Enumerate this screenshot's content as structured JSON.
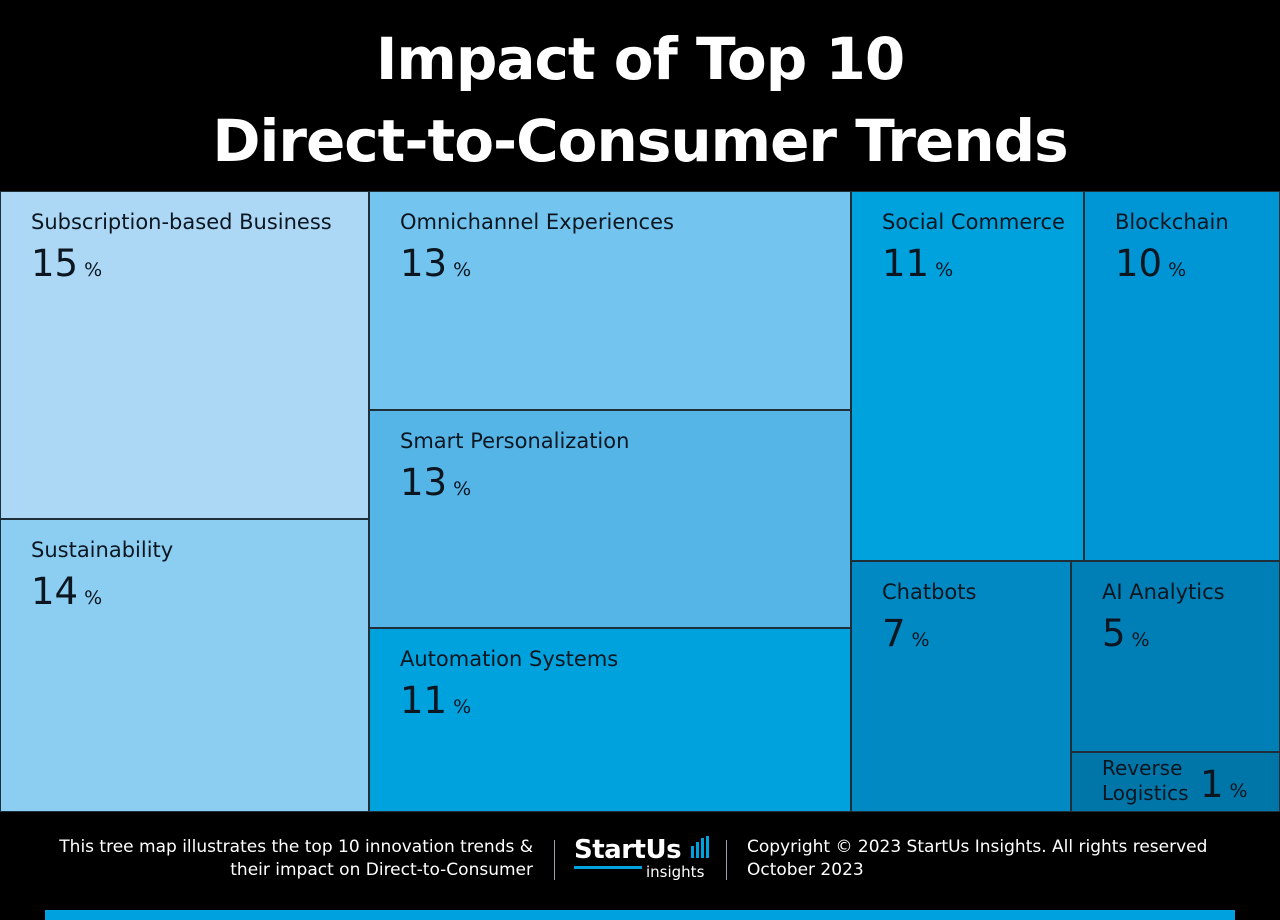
{
  "chart_data": {
    "type": "treemap",
    "title_lines": [
      "Impact of Top 10",
      "Direct-to-Consumer Trends"
    ],
    "unit": "%",
    "items": [
      {
        "label": "Subscription-based Business",
        "value": 15,
        "color": "#acd8f6"
      },
      {
        "label": "Sustainability",
        "value": 14,
        "color": "#8ccdf2"
      },
      {
        "label": "Omnichannel Experiences",
        "value": 13,
        "color": "#73c4ee"
      },
      {
        "label": "Smart Personalization",
        "value": 13,
        "color": "#56b5e7"
      },
      {
        "label": "Automation Systems",
        "value": 11,
        "color": "#00a2de"
      },
      {
        "label": "Social Commerce",
        "value": 11,
        "color": "#00a2de"
      },
      {
        "label": "Blockchain",
        "value": 10,
        "color": "#0096d5"
      },
      {
        "label": "Chatbots",
        "value": 7,
        "color": "#0089c3"
      },
      {
        "label": "AI Analytics",
        "value": 5,
        "color": "#007fb6"
      },
      {
        "label": "Reverse Logistics",
        "value": 1,
        "color": "#0075a8"
      }
    ]
  },
  "footer": {
    "caption_lines": [
      "This tree map illustrates the top 10 innovation trends &",
      "their impact on Direct-to-Consumer"
    ],
    "logo_word": "StartUs",
    "logo_sub": "insights",
    "copyright": "Copyright © 2023 StartUs Insights. All rights reserved",
    "date": "October 2023",
    "accent_color": "#00a1df"
  }
}
